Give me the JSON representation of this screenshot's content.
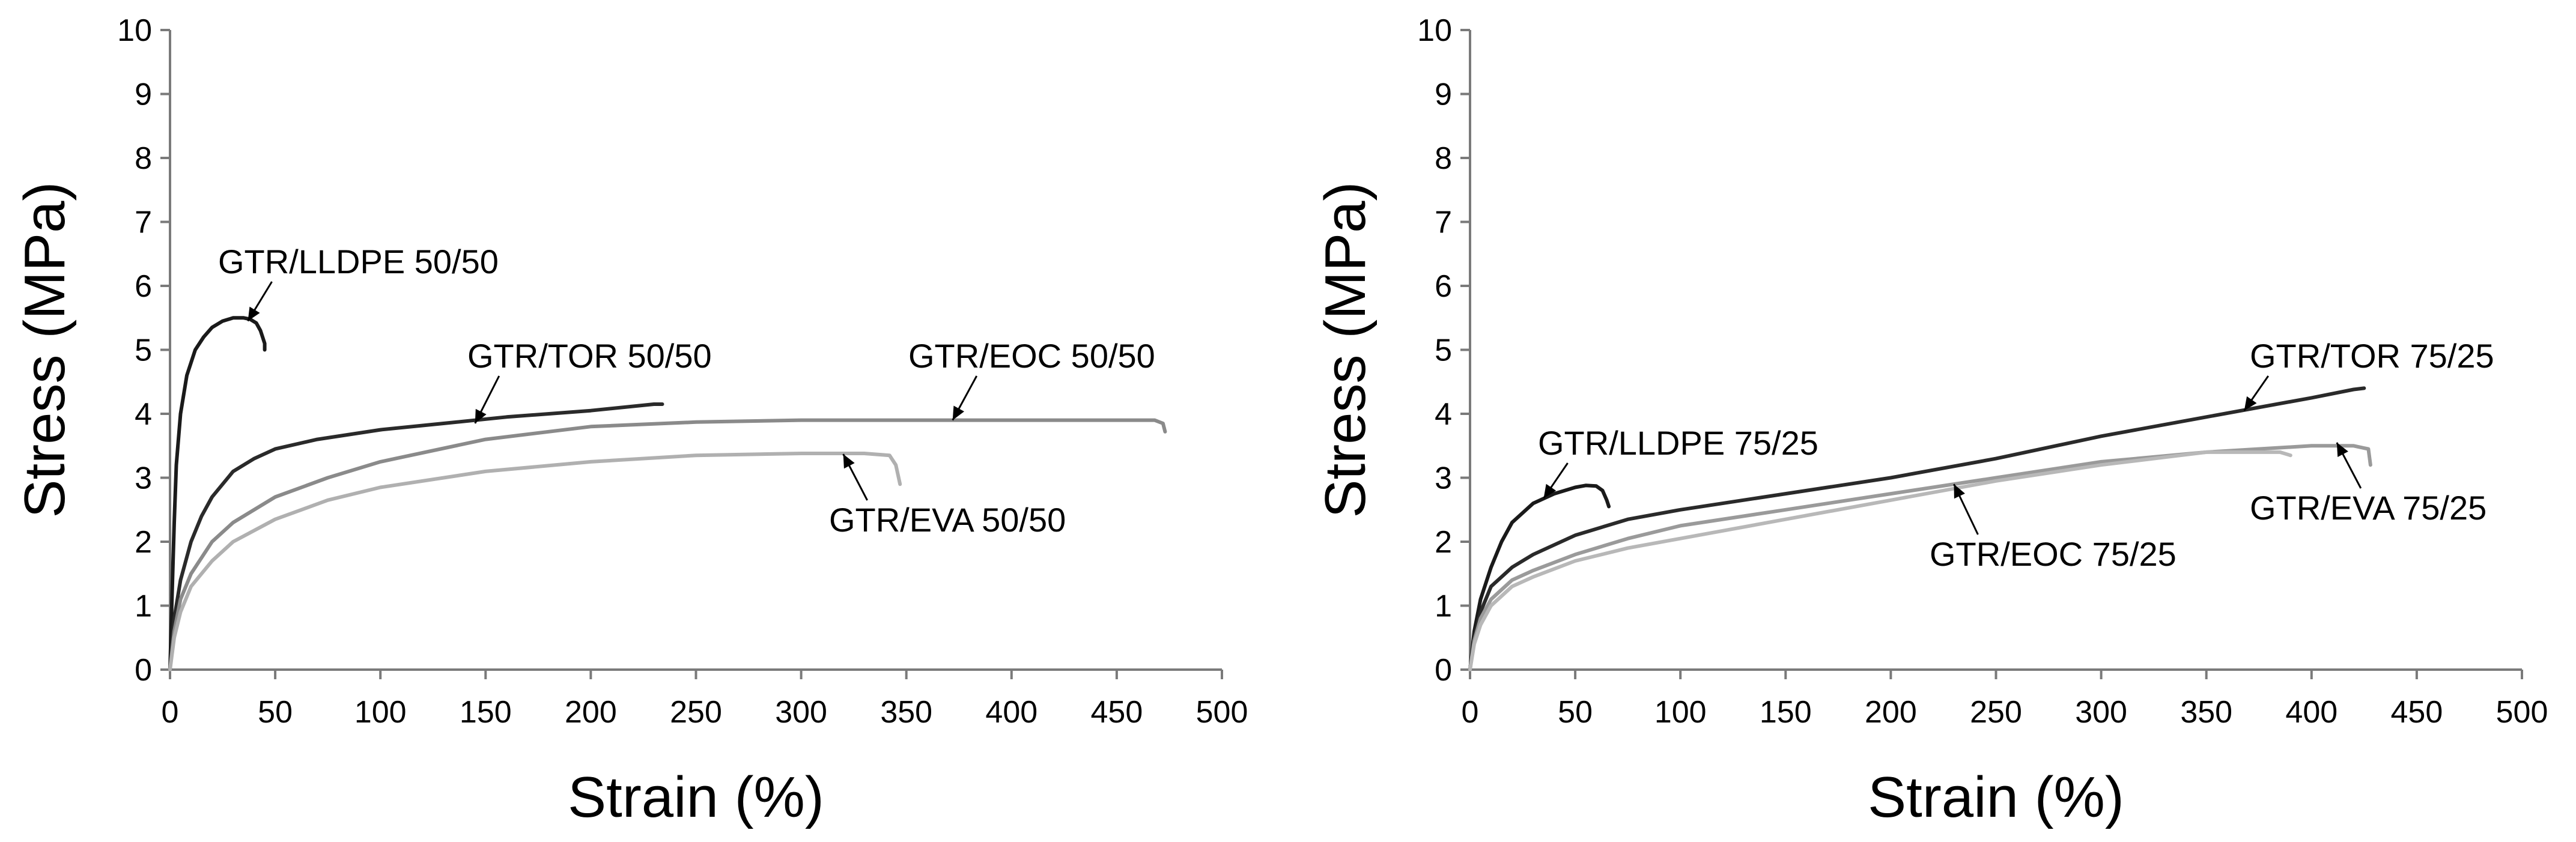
{
  "chart_data": [
    {
      "type": "line",
      "title": "",
      "xlabel": "Strain (%)",
      "ylabel": "Stress (MPa)",
      "xlim": [
        0,
        500
      ],
      "ylim": [
        0,
        10
      ],
      "x_ticks": [
        0,
        50,
        100,
        150,
        200,
        250,
        300,
        350,
        400,
        450,
        500
      ],
      "y_ticks": [
        0,
        1,
        2,
        3,
        4,
        5,
        6,
        7,
        8,
        9,
        10
      ],
      "grid": false,
      "series": [
        {
          "name": "GTR/LLDPE 50/50",
          "color": "#1a1a1a",
          "x": [
            0,
            1,
            2,
            3,
            5,
            8,
            12,
            16,
            20,
            25,
            30,
            35,
            38,
            41,
            43,
            44,
            45,
            45,
            45
          ],
          "y": [
            0,
            1.2,
            2.3,
            3.2,
            4.0,
            4.6,
            5.0,
            5.2,
            5.35,
            5.45,
            5.5,
            5.5,
            5.48,
            5.42,
            5.3,
            5.2,
            5.1,
            5.0,
            5.1
          ]
        },
        {
          "name": "GTR/TOR 50/50",
          "color": "#2a2a2a",
          "x": [
            0,
            2,
            5,
            10,
            15,
            20,
            30,
            40,
            50,
            70,
            100,
            130,
            160,
            200,
            230,
            234
          ],
          "y": [
            0,
            0.8,
            1.4,
            2.0,
            2.4,
            2.7,
            3.1,
            3.3,
            3.45,
            3.6,
            3.75,
            3.85,
            3.95,
            4.05,
            4.15,
            4.15
          ]
        },
        {
          "name": "GTR/EOC 50/50",
          "color": "#8a8a8a",
          "x": [
            0,
            2,
            5,
            10,
            20,
            30,
            50,
            75,
            100,
            150,
            200,
            250,
            300,
            350,
            400,
            450,
            468,
            472,
            473
          ],
          "y": [
            0,
            0.6,
            1.1,
            1.5,
            2.0,
            2.3,
            2.7,
            3.0,
            3.25,
            3.6,
            3.8,
            3.87,
            3.9,
            3.9,
            3.9,
            3.9,
            3.9,
            3.85,
            3.72
          ]
        },
        {
          "name": "GTR/EVA 50/50",
          "color": "#b0b0b0",
          "x": [
            0,
            2,
            5,
            10,
            20,
            30,
            50,
            75,
            100,
            150,
            200,
            250,
            300,
            330,
            342,
            345,
            347
          ],
          "y": [
            0,
            0.5,
            0.9,
            1.3,
            1.7,
            2.0,
            2.35,
            2.65,
            2.85,
            3.1,
            3.25,
            3.35,
            3.38,
            3.38,
            3.35,
            3.2,
            2.9
          ]
        }
      ],
      "annotations": [
        {
          "text": "GTR/LLDPE 50/50",
          "target": [
            37,
            5.45
          ]
        },
        {
          "text": "GTR/TOR 50/50",
          "target": [
            145,
            3.85
          ]
        },
        {
          "text": "GTR/EOC 50/50",
          "target": [
            372,
            3.9
          ]
        },
        {
          "text": "GTR/EVA 50/50",
          "target": [
            320,
            3.37
          ]
        }
      ]
    },
    {
      "type": "line",
      "title": "",
      "xlabel": "Strain (%)",
      "ylabel": "Stress (MPa)",
      "xlim": [
        0,
        500
      ],
      "ylim": [
        0,
        10
      ],
      "x_ticks": [
        0,
        50,
        100,
        150,
        200,
        250,
        300,
        350,
        400,
        450,
        500
      ],
      "y_ticks": [
        0,
        1,
        2,
        3,
        4,
        5,
        6,
        7,
        8,
        9,
        10
      ],
      "grid": false,
      "series": [
        {
          "name": "GTR/LLDPE 75/25",
          "color": "#1a1a1a",
          "x": [
            0,
            2,
            5,
            10,
            15,
            20,
            30,
            40,
            50,
            55,
            60,
            63,
            65,
            66
          ],
          "y": [
            0,
            0.6,
            1.1,
            1.6,
            2.0,
            2.3,
            2.6,
            2.75,
            2.85,
            2.88,
            2.87,
            2.8,
            2.65,
            2.55
          ]
        },
        {
          "name": "GTR/TOR 75/25",
          "color": "#2a2a2a",
          "x": [
            0,
            2,
            5,
            10,
            20,
            30,
            50,
            75,
            100,
            150,
            200,
            250,
            300,
            350,
            400,
            420,
            425
          ],
          "y": [
            0,
            0.5,
            0.9,
            1.3,
            1.6,
            1.8,
            2.1,
            2.35,
            2.5,
            2.75,
            3.0,
            3.3,
            3.65,
            3.95,
            4.25,
            4.38,
            4.4
          ]
        },
        {
          "name": "GTR/EVA 75/25",
          "color": "#9a9a9a",
          "x": [
            0,
            2,
            5,
            10,
            20,
            30,
            50,
            75,
            100,
            150,
            200,
            250,
            300,
            350,
            400,
            420,
            427,
            428
          ],
          "y": [
            0,
            0.45,
            0.8,
            1.1,
            1.4,
            1.55,
            1.8,
            2.05,
            2.25,
            2.5,
            2.75,
            3.0,
            3.25,
            3.4,
            3.5,
            3.5,
            3.45,
            3.2
          ]
        },
        {
          "name": "GTR/EOC 75/25",
          "color": "#b8b8b8",
          "x": [
            0,
            2,
            5,
            10,
            20,
            30,
            50,
            75,
            100,
            150,
            200,
            250,
            300,
            350,
            385,
            390
          ],
          "y": [
            0,
            0.4,
            0.7,
            1.0,
            1.3,
            1.45,
            1.7,
            1.9,
            2.05,
            2.35,
            2.65,
            2.95,
            3.2,
            3.4,
            3.4,
            3.35
          ]
        }
      ],
      "annotations": [
        {
          "text": "GTR/LLDPE 75/25",
          "target": [
            35,
            2.68
          ]
        },
        {
          "text": "GTR/TOR 75/25",
          "target": [
            368,
            4.05
          ]
        },
        {
          "text": "GTR/EOC 75/25",
          "target": [
            230,
            2.9
          ]
        },
        {
          "text": "GTR/EVA 75/25",
          "target": [
            412,
            3.55
          ]
        }
      ]
    }
  ]
}
